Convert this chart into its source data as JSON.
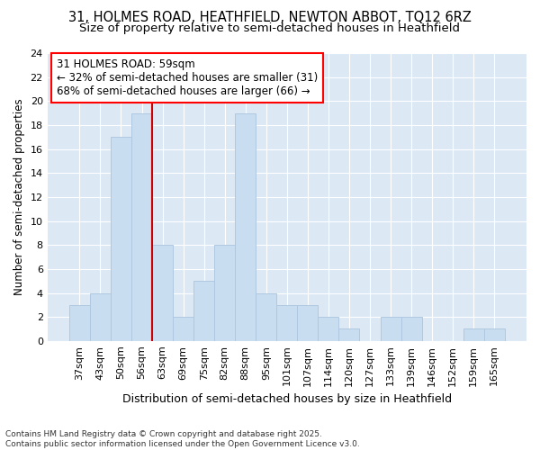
{
  "title1": "31, HOLMES ROAD, HEATHFIELD, NEWTON ABBOT, TQ12 6RZ",
  "title2": "Size of property relative to semi-detached houses in Heathfield",
  "xlabel": "Distribution of semi-detached houses by size in Heathfield",
  "ylabel": "Number of semi-detached properties",
  "categories": [
    "37sqm",
    "43sqm",
    "50sqm",
    "56sqm",
    "63sqm",
    "69sqm",
    "75sqm",
    "82sqm",
    "88sqm",
    "95sqm",
    "101sqm",
    "107sqm",
    "114sqm",
    "120sqm",
    "127sqm",
    "133sqm",
    "139sqm",
    "146sqm",
    "152sqm",
    "159sqm",
    "165sqm"
  ],
  "values": [
    3,
    4,
    17,
    19,
    8,
    2,
    5,
    8,
    19,
    4,
    3,
    3,
    2,
    1,
    0,
    2,
    2,
    0,
    0,
    1,
    1
  ],
  "bar_color": "#c9ddf0",
  "bar_edge_color": "#afc8e0",
  "vline_color": "#cc0000",
  "vline_x_index": 3.5,
  "annotation_text_line1": "31 HOLMES ROAD: 59sqm",
  "annotation_text_line2": "← 32% of semi-detached houses are smaller (31)",
  "annotation_text_line3": "68% of semi-detached houses are larger (66) →",
  "ylim": [
    0,
    24
  ],
  "yticks": [
    0,
    2,
    4,
    6,
    8,
    10,
    12,
    14,
    16,
    18,
    20,
    22,
    24
  ],
  "fig_bg_color": "#ffffff",
  "plot_bg_color": "#dce9f5",
  "grid_color": "#ffffff",
  "footer": "Contains HM Land Registry data © Crown copyright and database right 2025.\nContains public sector information licensed under the Open Government Licence v3.0.",
  "title_fontsize": 10.5,
  "subtitle_fontsize": 9.5,
  "tick_fontsize": 8,
  "ylabel_fontsize": 8.5,
  "xlabel_fontsize": 9,
  "annotation_fontsize": 8.5,
  "footer_fontsize": 6.5
}
